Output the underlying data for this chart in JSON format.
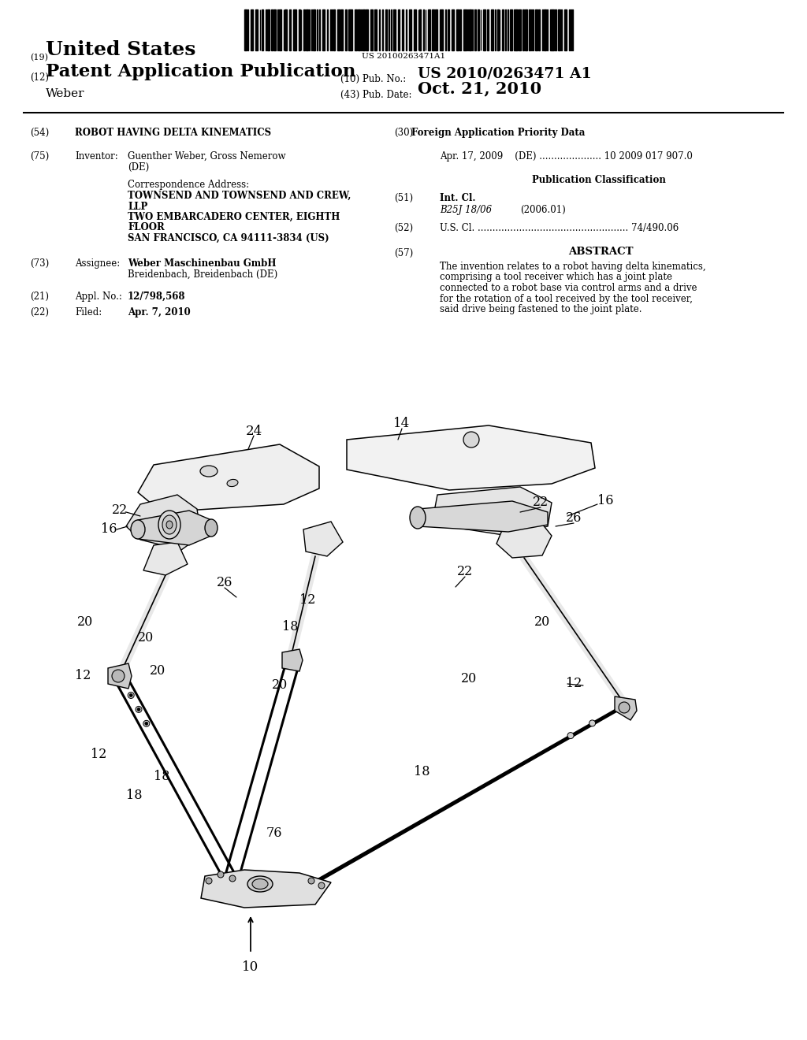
{
  "background_color": "#ffffff",
  "barcode_text": "US 20100263471A1",
  "header_line1_num": "(19)",
  "header_line1_text": "United States",
  "header_line2_num": "(12)",
  "header_line2_text": "Patent Application Publication",
  "header_pub_no_label": "(10) Pub. No.:",
  "header_pub_no_value": "US 2010/0263471 A1",
  "header_name": "Weber",
  "header_pub_date_label": "(43) Pub. Date:",
  "header_pub_date_value": "Oct. 21, 2010",
  "f54_num": "(54)",
  "f54_val": "ROBOT HAVING DELTA KINEMATICS",
  "f30_num": "(30)",
  "f30_title": "Foreign Application Priority Data",
  "f30_data1": "Apr. 17, 2009    (DE) ..................... 10 2009 017 907.0",
  "f75_num": "(75)",
  "f75_key": "Inventor:",
  "f75_val1": "Guenther Weber, Gross Nemerow",
  "f75_val2": "(DE)",
  "corr_title": "Correspondence Address:",
  "corr_lines": [
    "TOWNSEND AND TOWNSEND AND CREW,",
    "LLP",
    "TWO EMBARCADERO CENTER, EIGHTH",
    "FLOOR",
    "SAN FRANCISCO, CA 94111-3834 (US)"
  ],
  "f73_num": "(73)",
  "f73_key": "Assignee:",
  "f73_val1": "Weber Maschinenbau GmbH",
  "f73_val2": "Breidenbach, Breidenbach (DE)",
  "f21_num": "(21)",
  "f21_key": "Appl. No.:",
  "f21_val": "12/798,568",
  "f22_num": "(22)",
  "f22_key": "Filed:",
  "f22_val": "Apr. 7, 2010",
  "pub_class_title": "Publication Classification",
  "f51_num": "(51)",
  "f51_key": "Int. Cl.",
  "f51_class": "B25J 18/06",
  "f51_year": "(2006.01)",
  "f52_num": "(52)",
  "f52_text": "U.S. Cl. ................................................... 74/490.06",
  "f57_num": "(57)",
  "f57_title": "ABSTRACT",
  "f57_text": "The invention relates to a robot having delta kinematics, comprising a tool receiver which has a joint plate connected to a robot base via control arms and a drive for the rotation of a tool received by the tool receiver, said drive being fastened to the joint plate."
}
